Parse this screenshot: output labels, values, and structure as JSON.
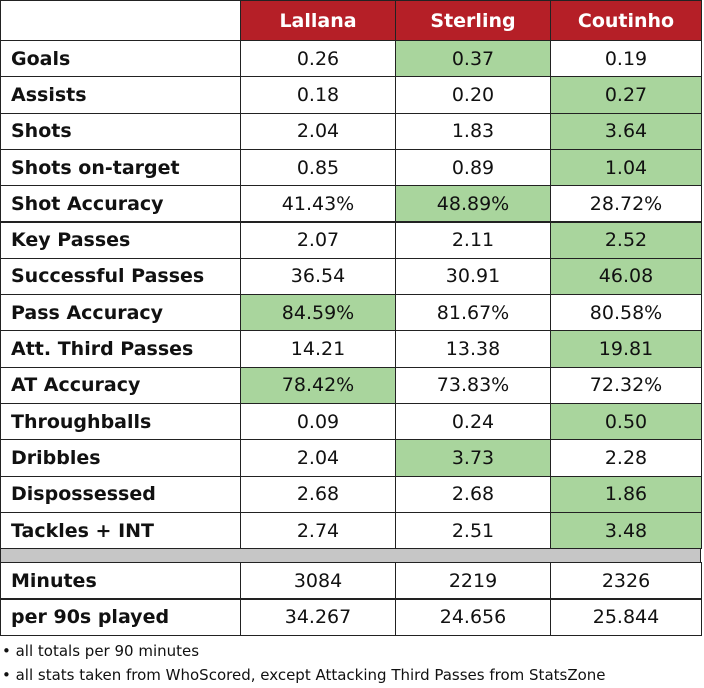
{
  "table": {
    "columns": [
      "Lallana",
      "Sterling",
      "Coutinho"
    ],
    "rows": [
      {
        "label": "Goals",
        "cells": [
          "0.26",
          "0.37",
          "0.19"
        ],
        "best": 1
      },
      {
        "label": "Assists",
        "cells": [
          "0.18",
          "0.20",
          "0.27"
        ],
        "best": 2
      },
      {
        "label": "Shots",
        "cells": [
          "2.04",
          "1.83",
          "3.64"
        ],
        "best": 2
      },
      {
        "label": "Shots on-target",
        "cells": [
          "0.85",
          "0.89",
          "1.04"
        ],
        "best": 2
      },
      {
        "label": "Shot Accuracy",
        "cells": [
          "41.43%",
          "48.89%",
          "28.72%"
        ],
        "best": 1
      },
      {
        "label": "Key Passes",
        "cells": [
          "2.07",
          "2.11",
          "2.52"
        ],
        "best": 2
      },
      {
        "label": "Successful Passes",
        "cells": [
          "36.54",
          "30.91",
          "46.08"
        ],
        "best": 2
      },
      {
        "label": "Pass Accuracy",
        "cells": [
          "84.59%",
          "81.67%",
          "80.58%"
        ],
        "best": 0
      },
      {
        "label": "Att. Third Passes",
        "cells": [
          "14.21",
          "13.38",
          "19.81"
        ],
        "best": 2
      },
      {
        "label": "AT Accuracy",
        "cells": [
          "78.42%",
          "73.83%",
          "72.32%"
        ],
        "best": 0
      },
      {
        "label": "Throughballs",
        "cells": [
          "0.09",
          "0.24",
          "0.50"
        ],
        "best": 2
      },
      {
        "label": "Dribbles",
        "cells": [
          "2.04",
          "3.73",
          "2.28"
        ],
        "best": 1
      },
      {
        "label": "Dispossessed",
        "cells": [
          "2.68",
          "2.68",
          "1.86"
        ],
        "best": 2
      },
      {
        "label": "Tackles + INT",
        "cells": [
          "2.74",
          "2.51",
          "3.48"
        ],
        "best": 2
      }
    ],
    "totals": [
      {
        "label": "Minutes",
        "cells": [
          "3084",
          "2219",
          "2326"
        ]
      },
      {
        "label": "per 90s played",
        "cells": [
          "34.267",
          "24.656",
          "25.844"
        ]
      }
    ],
    "highlight_color": "#a9d59d"
  },
  "notes": [
    "• all totals per 90 minutes",
    "• all stats taken from WhoScored, except Attacking Third Passes from StatsZone"
  ]
}
